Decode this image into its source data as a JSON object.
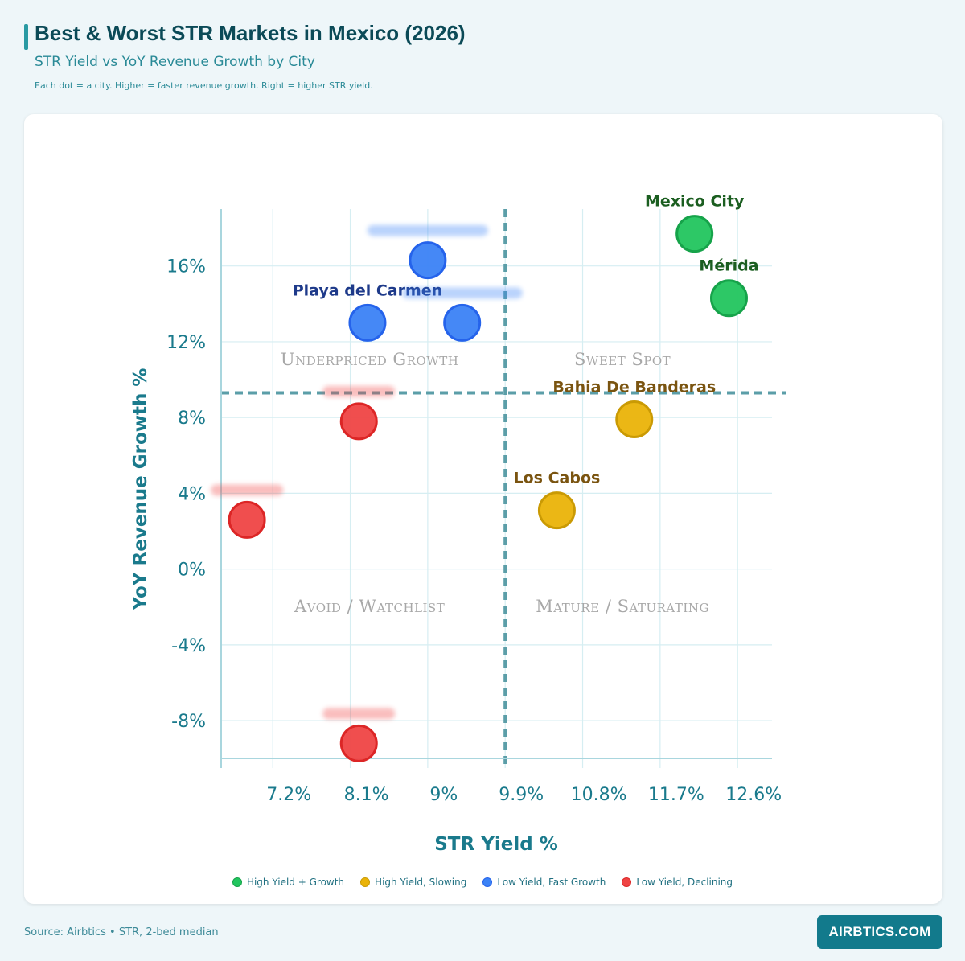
{
  "header": {
    "title": "Best & Worst STR Markets in Mexico (2026)",
    "subtitle": "STR Yield vs YoY Revenue Growth by City",
    "note": "Each dot = a city. Higher = faster revenue growth. Right = higher STR yield."
  },
  "footer": {
    "source": "Source: Airbtics • STR, 2-bed median",
    "brand": "AIRBTICS.COM"
  },
  "colors": {
    "green": "#22c55e",
    "yellow": "#eab308",
    "blue": "#3b82f6",
    "red": "#ef4444",
    "axis": "#1a7a8c",
    "grid": "#d6eef2",
    "divider": "#5b9ea8",
    "quadrant_label": "#a8a8a8"
  },
  "chart_data": {
    "type": "scatter",
    "xlabel": "STR Yield %",
    "ylabel": "YoY Revenue Growth %",
    "x_ticks": [
      "7.2%",
      "8.1%",
      "9%",
      "9.9%",
      "10.8%",
      "11.7%",
      "12.6%"
    ],
    "y_ticks": [
      "16%",
      "12%",
      "8%",
      "4%",
      "0%",
      "-4%",
      "-8%"
    ],
    "xlim": [
      6.6,
      13.0
    ],
    "ylim": [
      -10.5,
      19.0
    ],
    "grid": true,
    "legend_position": "bottom-center",
    "divider_lines": {
      "x": 9.9,
      "y": 9.3
    },
    "quadrant_labels": {
      "top_left": "Underpriced Growth",
      "top_right": "Sweet Spot",
      "bottom_left": "Avoid / Watchlist",
      "bottom_right": "Mature / Saturating"
    },
    "series": [
      {
        "name": "High Yield + Growth",
        "color": "green",
        "points": [
          {
            "label": "Mexico City",
            "x": 12.1,
            "y": 17.7
          },
          {
            "label": "Mérida",
            "x": 12.5,
            "y": 14.3
          }
        ]
      },
      {
        "name": "High Yield, Slowing",
        "color": "yellow",
        "points": [
          {
            "label": "Bahia De Banderas",
            "x": 11.4,
            "y": 7.9
          },
          {
            "label": "Los Cabos",
            "x": 10.5,
            "y": 3.1
          }
        ]
      },
      {
        "name": "Low Yield, Fast Growth",
        "color": "blue",
        "points": [
          {
            "label": "",
            "x": 9.0,
            "y": 16.3
          },
          {
            "label": "Playa del Carmen",
            "x": 8.3,
            "y": 13.0
          },
          {
            "label": "",
            "x": 9.4,
            "y": 13.0
          }
        ]
      },
      {
        "name": "Low Yield, Declining",
        "color": "red",
        "points": [
          {
            "label": "",
            "x": 8.2,
            "y": 7.8
          },
          {
            "label": "",
            "x": 6.9,
            "y": 2.6
          },
          {
            "label": "",
            "x": 8.2,
            "y": -9.2
          }
        ]
      }
    ]
  }
}
